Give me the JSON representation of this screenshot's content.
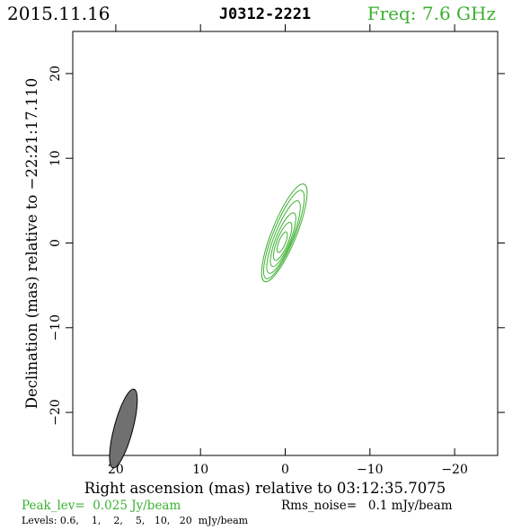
{
  "header": {
    "date": "2015.11.16",
    "source": "J0312-2221",
    "freq": "Freq: 7.6 GHz"
  },
  "footer": {
    "peak": "Peak_lev=  0.025 Jy/beam",
    "rms": "Rms_noise=   0.1 mJy/beam",
    "levels": "Levels: 0.6,    1,    2,    5,   10,   20  mJy/beam"
  },
  "colors": {
    "green": "#3cb030",
    "beam": "#707070",
    "axis": "#000000"
  },
  "chart_data": {
    "type": "contour",
    "title": "J0312-2221",
    "xlabel": "Right ascension (mas) relative to 03:12:35.7075",
    "ylabel": "Declination (mas) relative to −22:21:17.110",
    "xlim": [
      25,
      -25
    ],
    "ylim": [
      -25,
      25
    ],
    "xticks": [
      20,
      10,
      0,
      -10,
      -20
    ],
    "xtick_labels": [
      "20",
      "10",
      "0",
      "−10",
      "−20"
    ],
    "yticks": [
      20,
      10,
      0,
      -10,
      -20
    ],
    "ytick_labels": [
      "20",
      "10",
      "0",
      "−10",
      "−20"
    ],
    "contour_levels_mJy": [
      0.6,
      1,
      2,
      5,
      10,
      20
    ],
    "peak_Jy_per_beam": 0.025,
    "rms_mJy_per_beam": 0.1,
    "contours": [
      {
        "level": 0.6,
        "cx": 0.1,
        "cy": 1.2,
        "a": 6.2,
        "b": 1.45,
        "pa_deg": 22
      },
      {
        "level": 1,
        "cx": 0.15,
        "cy": 1.0,
        "a": 5.6,
        "b": 1.25,
        "pa_deg": 22
      },
      {
        "level": 2,
        "cx": 0.2,
        "cy": 0.7,
        "a": 4.6,
        "b": 1.05,
        "pa_deg": 22
      },
      {
        "level": 5,
        "cx": 0.25,
        "cy": 0.4,
        "a": 3.4,
        "b": 0.85,
        "pa_deg": 22
      },
      {
        "level": 10,
        "cx": 0.3,
        "cy": 0.2,
        "a": 2.4,
        "b": 0.65,
        "pa_deg": 22
      },
      {
        "level": 20,
        "cx": 0.35,
        "cy": 0.1,
        "a": 1.3,
        "b": 0.4,
        "pa_deg": 22
      }
    ],
    "beam": {
      "cx": 19.1,
      "cy": -21.9,
      "major_mas": 4.8,
      "minor_mas": 1.1,
      "pa_deg": 15
    }
  }
}
